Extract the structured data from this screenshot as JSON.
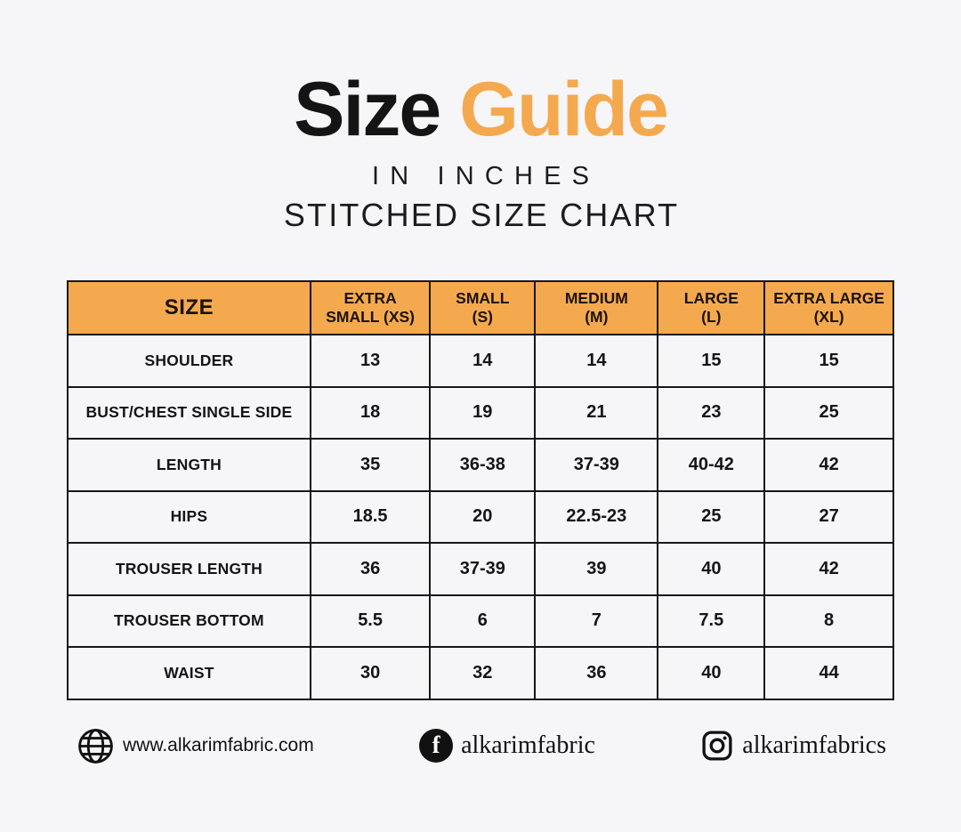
{
  "header": {
    "title_word_1": "Size",
    "title_word_2": "Guide",
    "subtitle_units": "IN INCHES",
    "subtitle_chart": "STITCHED SIZE CHART"
  },
  "colors": {
    "accent_orange": "#f5a94e",
    "ink": "#141414",
    "page_background": "#f6f6f8",
    "table_border": "#161616"
  },
  "chart_data": {
    "type": "table",
    "title": "Size Guide",
    "subtitle": "In Inches — Stitched Size Chart",
    "columns": [
      "SIZE",
      "EXTRA SMALL (XS)",
      "SMALL (S)",
      "MEDIUM (M)",
      "LARGE (L)",
      "EXTRA LARGE (XL)"
    ],
    "header_cell_lines": [
      [
        "SIZE"
      ],
      [
        "EXTRA",
        "SMALL (XS)"
      ],
      [
        "SMALL",
        "(S)"
      ],
      [
        "MEDIUM",
        "(M)"
      ],
      [
        "LARGE",
        "(L)"
      ],
      [
        "EXTRA LARGE",
        "(XL)"
      ]
    ],
    "rows": [
      {
        "label": "SHOULDER",
        "values": [
          "13",
          "14",
          "14",
          "15",
          "15"
        ]
      },
      {
        "label": "BUST/CHEST SINGLE SIDE",
        "values": [
          "18",
          "19",
          "21",
          "23",
          "25"
        ]
      },
      {
        "label": "LENGTH",
        "values": [
          "35",
          "36-38",
          "37-39",
          "40-42",
          "42"
        ]
      },
      {
        "label": "HIPS",
        "values": [
          "18.5",
          "20",
          "22.5-23",
          "25",
          "27"
        ]
      },
      {
        "label": "TROUSER LENGTH",
        "values": [
          "36",
          "37-39",
          "39",
          "40",
          "42"
        ]
      },
      {
        "label": "TROUSER BOTTOM",
        "values": [
          "5.5",
          "6",
          "7",
          "7.5",
          "8"
        ]
      },
      {
        "label": "WAIST",
        "values": [
          "30",
          "32",
          "36",
          "40",
          "44"
        ]
      }
    ]
  },
  "footer": {
    "website": "www.alkarimfabric.com",
    "facebook_handle": "alkarimfabric",
    "instagram_handle": "alkarimfabrics",
    "facebook_glyph": "f",
    "icons": [
      "globe-icon",
      "facebook-icon",
      "instagram-icon"
    ]
  }
}
